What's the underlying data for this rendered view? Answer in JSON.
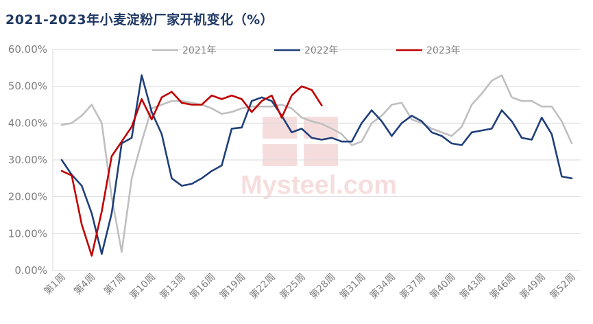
{
  "chart_data": {
    "type": "line",
    "title": "2021-2023年小麦淀粉厂家开机变化（%）",
    "watermark": "Mysteel.com 我的钢铁",
    "ylim": [
      0,
      60
    ],
    "y_ticks": [
      "0.00%",
      "10.00%",
      "20.00%",
      "30.00%",
      "40.00%",
      "50.00%",
      "60.00%"
    ],
    "x_labels": [
      "第1周",
      "第4周",
      "第7周",
      "第10周",
      "第13周",
      "第16周",
      "第19周",
      "第22周",
      "第25周",
      "第28周",
      "第31周",
      "第34周",
      "第37周",
      "第40周",
      "第43周",
      "第46周",
      "第49周",
      "第52周"
    ],
    "x_label_weeks": [
      1,
      4,
      7,
      10,
      13,
      16,
      19,
      22,
      25,
      28,
      31,
      34,
      37,
      40,
      43,
      46,
      49,
      52
    ],
    "legend_position": "top",
    "series": [
      {
        "name": "2021年",
        "color": "#bfbfbf",
        "values": [
          39.5,
          40,
          42,
          45,
          40,
          20,
          5,
          25,
          35,
          44,
          45,
          46,
          46,
          45.5,
          45,
          44,
          42.5,
          43,
          44,
          44.5,
          44.5,
          44.5,
          45,
          44,
          41.5,
          40.5,
          39.8,
          38.5,
          37,
          34,
          35,
          40,
          42,
          45,
          45.5,
          41,
          40,
          38.5,
          37.5,
          36.5,
          39,
          45,
          48,
          51.5,
          53,
          47,
          46,
          46,
          44.5,
          44.5,
          40.5,
          34.5
        ]
      },
      {
        "name": "2022年",
        "color": "#1f3f7a",
        "values": [
          30,
          26,
          23,
          15.5,
          4.5,
          15.5,
          34.5,
          36,
          53,
          43,
          37,
          25,
          23,
          23.5,
          25,
          27,
          28.5,
          38.5,
          38.8,
          46,
          47,
          46,
          42,
          37.5,
          38.5,
          36,
          35.5,
          36,
          35,
          35,
          40,
          43.5,
          40.5,
          36.5,
          40,
          42,
          40.5,
          37.5,
          36.5,
          34.5,
          34,
          37.5,
          38,
          38.5,
          43.5,
          40.5,
          36,
          35.5,
          41.5,
          37,
          25.5,
          25
        ]
      },
      {
        "name": "2023年",
        "color": "#c00000",
        "values": [
          27,
          25.8,
          12.5,
          4,
          16,
          31,
          35,
          39,
          46.5,
          41,
          47,
          48.5,
          45.5,
          45,
          45,
          47.5,
          46.5,
          47.5,
          46.5,
          43,
          46,
          47.5,
          41.5,
          47.5,
          50,
          49,
          44.8
        ]
      }
    ]
  }
}
